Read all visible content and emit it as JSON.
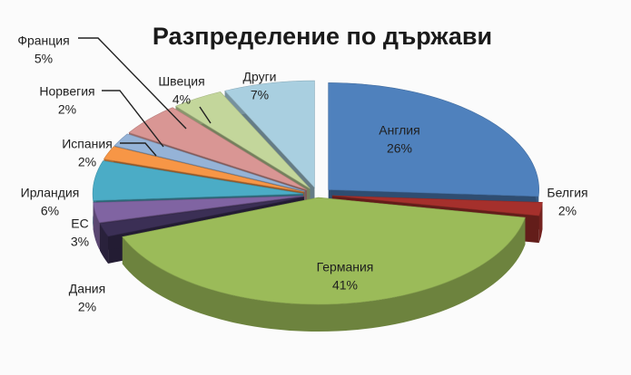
{
  "chart_data": {
    "type": "pie3d",
    "title": "Разпределение по държави",
    "categories": [
      "Англия",
      "Белгия",
      "Германия",
      "Дания",
      "ЕС",
      "Ирландия",
      "Испания",
      "Норвегия",
      "Франция",
      "Швеция",
      "Други"
    ],
    "values": [
      26,
      2,
      41,
      2,
      3,
      6,
      2,
      2,
      5,
      4,
      7
    ],
    "value_labels": [
      "26%",
      "2%",
      "41%",
      "2%",
      "3%",
      "6%",
      "2%",
      "2%",
      "5%",
      "4%",
      "7%"
    ],
    "colors": [
      "#4f81bd",
      "#a5302c",
      "#9bbb59",
      "#3b2f55",
      "#8064a2",
      "#4bacc6",
      "#f79646",
      "#95b3d7",
      "#d99694",
      "#c3d69b",
      "#a9cfe0"
    ]
  }
}
